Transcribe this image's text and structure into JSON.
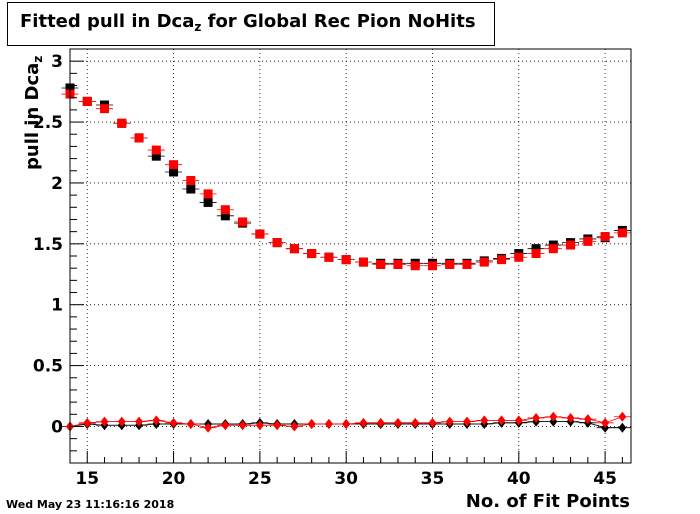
{
  "title": {
    "main": "Fitted pull in Dca",
    "sub": "z",
    "rest": " for Global Rec Pion NoHits"
  },
  "ylabel": {
    "main": "pull in Dca",
    "sub": "z"
  },
  "xlabel": "No. of Fit Points",
  "timestamp": "Wed May 23 11:16:16 2018",
  "colors": {
    "series_black": "#000000",
    "series_red": "#ff0000",
    "grid": "#000000"
  },
  "chart_data": {
    "type": "scatter",
    "xlim": [
      14,
      46.5
    ],
    "ylim": [
      -0.3,
      3.1
    ],
    "xticks": [
      15,
      20,
      25,
      30,
      35,
      40,
      45
    ],
    "yticks": [
      0,
      0.5,
      1,
      1.5,
      2,
      2.5,
      3
    ],
    "grid": true,
    "x": [
      14,
      15,
      16,
      17,
      18,
      19,
      20,
      21,
      22,
      23,
      24,
      25,
      26,
      27,
      28,
      29,
      30,
      31,
      32,
      33,
      34,
      35,
      36,
      37,
      38,
      39,
      40,
      41,
      42,
      43,
      44,
      45,
      46
    ],
    "series": [
      {
        "marker": "square",
        "color": "#000000",
        "values": [
          2.78,
          2.67,
          2.64,
          2.49,
          2.37,
          2.22,
          2.09,
          1.95,
          1.84,
          1.73,
          1.67,
          1.58,
          1.51,
          1.46,
          1.42,
          1.39,
          1.37,
          1.35,
          1.34,
          1.34,
          1.34,
          1.34,
          1.34,
          1.34,
          1.36,
          1.38,
          1.42,
          1.46,
          1.49,
          1.51,
          1.54,
          1.55,
          1.61
        ]
      },
      {
        "marker": "square",
        "color": "#ff0000",
        "values": [
          2.73,
          2.67,
          2.61,
          2.49,
          2.37,
          2.27,
          2.15,
          2.02,
          1.91,
          1.78,
          1.68,
          1.58,
          1.51,
          1.46,
          1.42,
          1.39,
          1.37,
          1.35,
          1.33,
          1.33,
          1.32,
          1.32,
          1.33,
          1.33,
          1.35,
          1.37,
          1.39,
          1.42,
          1.46,
          1.49,
          1.52,
          1.56,
          1.59
        ]
      },
      {
        "marker": "diamond",
        "color": "#000000",
        "values": [
          0.0,
          0.02,
          0.01,
          0.01,
          0.01,
          0.02,
          0.02,
          0.02,
          0.02,
          0.02,
          0.02,
          0.03,
          0.02,
          0.02,
          0.02,
          0.02,
          0.02,
          0.02,
          0.02,
          0.02,
          0.02,
          0.02,
          0.02,
          0.02,
          0.02,
          0.03,
          0.03,
          0.04,
          0.04,
          0.04,
          0.03,
          -0.01,
          -0.01
        ]
      },
      {
        "marker": "diamond",
        "color": "#ff0000",
        "values": [
          0.0,
          0.03,
          0.04,
          0.04,
          0.04,
          0.05,
          0.03,
          0.02,
          -0.01,
          0.01,
          0.01,
          0.01,
          0.01,
          0.0,
          0.02,
          0.02,
          0.02,
          0.03,
          0.03,
          0.03,
          0.03,
          0.03,
          0.04,
          0.04,
          0.05,
          0.05,
          0.05,
          0.07,
          0.08,
          0.07,
          0.06,
          0.03,
          0.08
        ]
      }
    ]
  }
}
